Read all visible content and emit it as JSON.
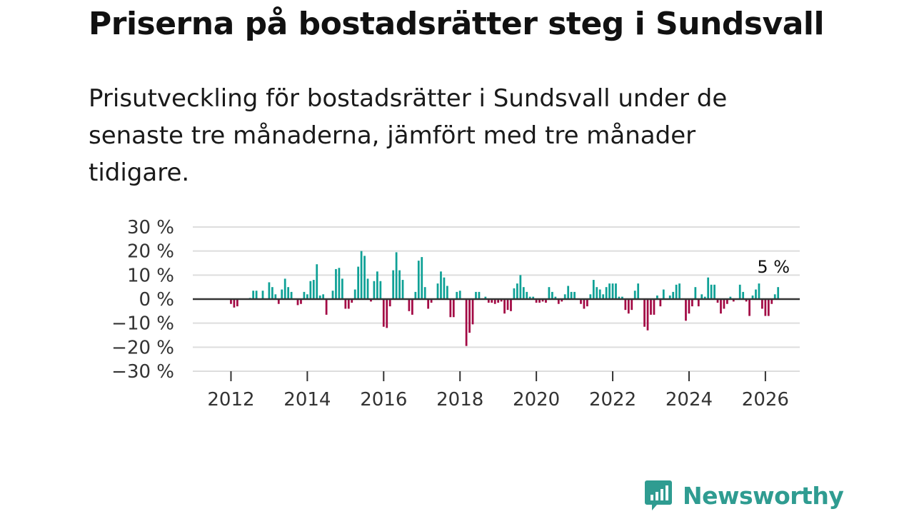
{
  "header": {
    "title": "Priserna på bostadsrätter steg i Sundsvall",
    "subtitle": "Prisutveckling för bostadsrätter i Sundsvall under de senaste tre månaderna, jämfört med tre månader tidigare."
  },
  "brand": {
    "name": "Newsworthy"
  },
  "colors": {
    "positive": "#0fa196",
    "negative": "#a30a45",
    "grid": "#dddddd",
    "zero_line": "#333333",
    "brand": "#2f9c91"
  },
  "chart_data": {
    "type": "bar",
    "title": "Priserna på bostadsrätter steg i Sundsvall",
    "subtitle": "Prisutveckling för bostadsrätter i Sundsvall under de senaste tre månaderna, jämfört med tre månader tidigare.",
    "xlabel": "",
    "ylabel": "",
    "x_start": 2011.0,
    "x_step": 0.08333,
    "xlim": [
      2011.0,
      2026.9
    ],
    "ylim": [
      -30,
      30
    ],
    "grid": true,
    "y_ticks": [
      30,
      20,
      10,
      0,
      -10,
      -20,
      -30
    ],
    "y_tick_labels": [
      "30 %",
      "20 %",
      "10 %",
      "0 %",
      "−10 %",
      "−20 %",
      "−30 %"
    ],
    "x_ticks": [
      2012,
      2014,
      2016,
      2018,
      2020,
      2022,
      2024,
      2026
    ],
    "x_tick_labels": [
      "2012",
      "2014",
      "2016",
      "2018",
      "2020",
      "2022",
      "2024",
      "2026"
    ],
    "values": [
      0,
      0,
      0,
      0,
      0,
      0,
      0,
      0,
      0,
      0,
      0,
      0,
      -2,
      -3.5,
      -3,
      0,
      0,
      0,
      0.5,
      3.5,
      3.5,
      0,
      3.5,
      0,
      7,
      5,
      2,
      -2,
      4,
      8.5,
      5,
      3,
      0,
      -2.5,
      -2,
      3,
      2,
      7.5,
      8,
      14.5,
      1.5,
      2,
      -6.5,
      0,
      3.5,
      12.5,
      13,
      8.5,
      -4,
      -4,
      -1.5,
      4,
      13.5,
      20,
      18,
      8.5,
      -1,
      7.5,
      11.5,
      7.5,
      -11.5,
      -12,
      -3,
      12,
      19.5,
      12,
      8,
      0,
      -5,
      -6.5,
      3,
      16,
      17.5,
      5,
      -4,
      -1.5,
      0,
      6.5,
      11.5,
      9,
      5.5,
      -7.5,
      -7.5,
      3,
      3.5,
      0,
      -19.5,
      -14,
      -10.5,
      3,
      3,
      0,
      1,
      -1.5,
      -1.5,
      -2,
      -1.5,
      -1,
      -6,
      -4.5,
      -5,
      4.5,
      6.5,
      10,
      5,
      3,
      1,
      1,
      -1.5,
      -1.5,
      -1,
      -1.5,
      5,
      3,
      1,
      -2,
      -1,
      2,
      5.5,
      3,
      3,
      0,
      -2,
      -4,
      -3,
      2,
      8,
      5,
      4,
      2,
      5,
      6.5,
      6.5,
      6.5,
      1,
      1,
      -4.5,
      -6,
      -4.5,
      3.5,
      6.5,
      0,
      -11.5,
      -13,
      -6.5,
      -6.5,
      1.5,
      -3,
      4,
      0,
      1.5,
      3,
      6,
      6.5,
      0,
      -9,
      -6,
      -3,
      5,
      -3,
      2,
      1,
      9,
      6,
      6,
      -1.5,
      -6,
      -4,
      -2,
      1,
      -1,
      0,
      6,
      3,
      -1,
      -7,
      1.5,
      4,
      6.5,
      -4,
      -7,
      -7,
      -2,
      2,
      5
    ],
    "annotations": [
      {
        "x": 2026.25,
        "value": 5,
        "label": "5 %"
      }
    ]
  }
}
